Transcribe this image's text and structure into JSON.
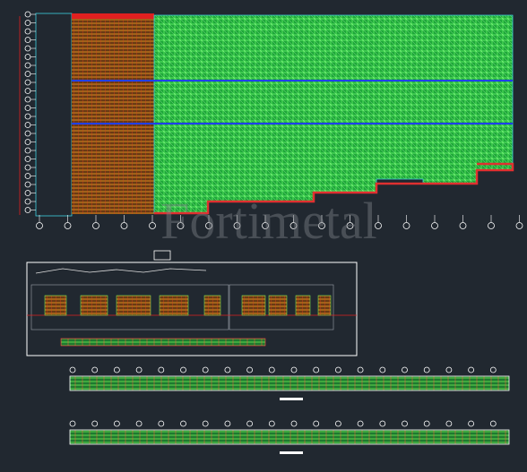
{
  "watermark": "Fortimetal"
}
